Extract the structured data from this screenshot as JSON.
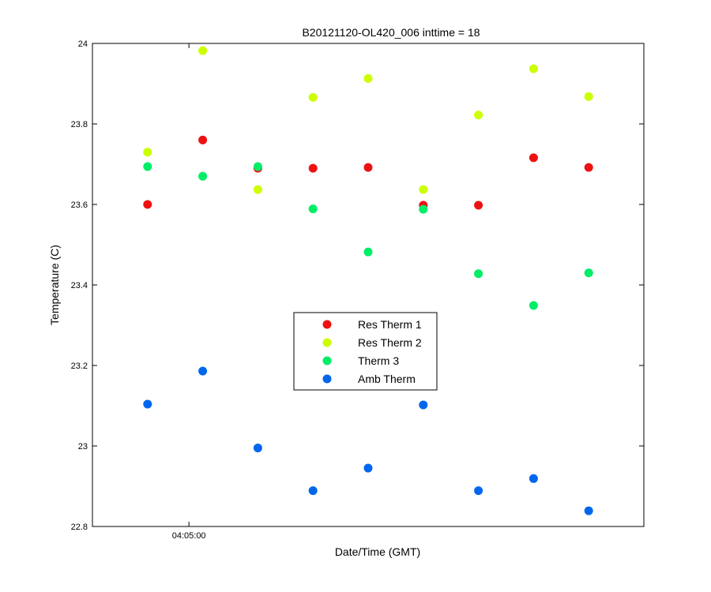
{
  "chart_data": {
    "type": "scatter",
    "title": "B20121120-OL420_006 inttime = 18",
    "xlabel": "Date/Time (GMT)",
    "ylabel": "Temperature (C)",
    "ylim": [
      22.8,
      24.0
    ],
    "yticks": [
      "22.8",
      "23",
      "23.2",
      "23.4",
      "23.6",
      "23.8",
      "24"
    ],
    "xticks": [
      {
        "label": "04:05:00",
        "x": 1.75
      }
    ],
    "xlim": [
      0,
      10
    ],
    "x": [
      1,
      2,
      3,
      4,
      5,
      6,
      7,
      8,
      9
    ],
    "legend_position": "center",
    "grid": false,
    "series": [
      {
        "name": "Res Therm 1",
        "color": "#ee1111",
        "values": [
          23.6,
          23.76,
          23.69,
          23.69,
          23.692,
          23.598,
          23.598,
          23.716,
          23.692
        ]
      },
      {
        "name": "Res Therm 2",
        "color": "#ccff00",
        "values": [
          23.73,
          23.982,
          23.637,
          23.866,
          23.913,
          23.637,
          23.822,
          23.937,
          23.868
        ]
      },
      {
        "name": "Therm 3",
        "color": "#00ee66",
        "values": [
          23.694,
          23.67,
          23.694,
          23.589,
          23.482,
          23.588,
          23.428,
          23.349,
          23.43
        ]
      },
      {
        "name": "Amb Therm",
        "color": "#0066ee",
        "values": [
          23.104,
          23.186,
          22.995,
          22.889,
          22.945,
          23.102,
          22.889,
          22.919,
          22.839
        ]
      }
    ]
  }
}
